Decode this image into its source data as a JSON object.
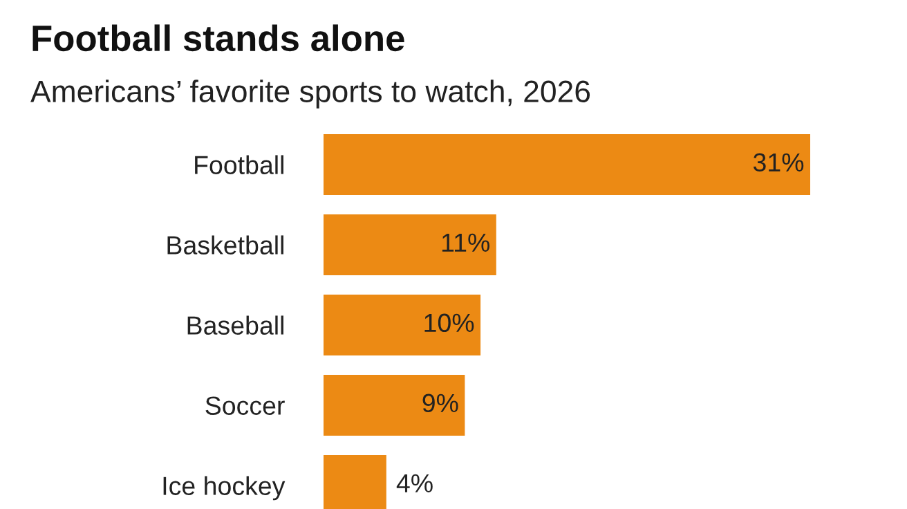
{
  "chart_data": {
    "type": "bar",
    "orientation": "horizontal",
    "title": "Football stands alone",
    "subtitle": "Americans’ favorite sports to watch, 2026",
    "categories": [
      "Football",
      "Basketball",
      "Baseball",
      "Soccer",
      "Ice hockey"
    ],
    "values": [
      31,
      11,
      10,
      9,
      4
    ],
    "value_labels": [
      "31%",
      "11%",
      "10%",
      "9%",
      "4%"
    ],
    "color": "#ec8a14",
    "grid": false,
    "legend": false
  }
}
